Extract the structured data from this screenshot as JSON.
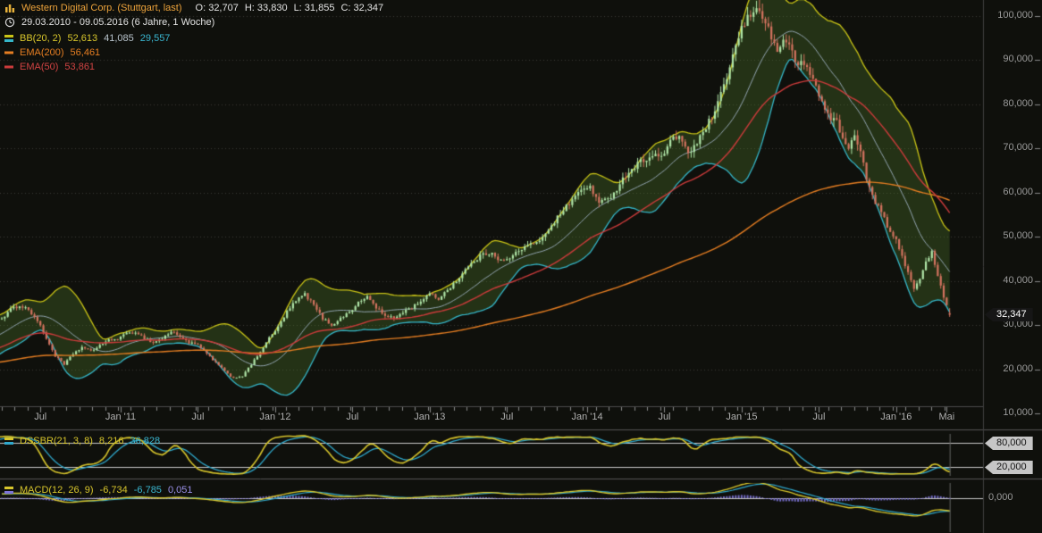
{
  "header": {
    "title": "Western Digital Corp. (Stuttgart, last)",
    "ohlc": {
      "o": "O: 32,707",
      "h": "H: 33,830",
      "l": "L: 31,855",
      "c": "C: 32,347"
    },
    "date_range": "29.03.2010 - 09.05.2016 (6 Jahre, 1 Woche)"
  },
  "legend": {
    "bb_label": "BB(20, 2)",
    "bb_upper": "52,613",
    "bb_middle": "41,085",
    "bb_lower": "29,557",
    "ema200_label": "EMA(200)",
    "ema200_value": "56,461",
    "ema50_label": "EMA(50)",
    "ema50_value": "53,861"
  },
  "dssbr_panel": {
    "label": "DSSBR(21, 3, 8)",
    "value_main": "8,216",
    "value_signal": "36,828",
    "upper_badge": "80,000",
    "lower_badge": "20,000"
  },
  "macd_panel": {
    "label": "MACD(12, 26, 9)",
    "value_macd": "-6,734",
    "value_signal": "-6,785",
    "value_hist": "0,051",
    "zero_label": "0,000"
  },
  "price_badge": "32,347",
  "y_axis_labels": [
    "100,000",
    "90,000",
    "80,000",
    "70,000",
    "60,000",
    "50,000",
    "40,000",
    "30,000",
    "20,000",
    "10,000"
  ],
  "chart_data": {
    "type": "candlestick",
    "instrument": "Western Digital Corp. (Stuttgart, last)",
    "timeframe": "1 Woche",
    "date_start": "29.03.2010",
    "date_end": "09.05.2016",
    "n_weeks": 320,
    "ylim": [
      10,
      105
    ],
    "y_ticks": [
      100,
      90,
      80,
      70,
      60,
      50,
      40,
      30,
      20,
      10
    ],
    "x_ticks": [
      {
        "label": "Jul",
        "week": 13
      },
      {
        "label": "Jan '11",
        "week": 40
      },
      {
        "label": "Jul",
        "week": 66
      },
      {
        "label": "Jan '12",
        "week": 92
      },
      {
        "label": "Jul",
        "week": 118
      },
      {
        "label": "Jan '13",
        "week": 144
      },
      {
        "label": "Jul",
        "week": 170
      },
      {
        "label": "Jan '14",
        "week": 197
      },
      {
        "label": "Jul",
        "week": 223
      },
      {
        "label": "Jan '15",
        "week": 249
      },
      {
        "label": "Jul",
        "week": 275
      },
      {
        "label": "Jan '16",
        "week": 301
      },
      {
        "label": "Mai",
        "week": 318
      }
    ],
    "close_keypoints": [
      [
        0,
        31.5
      ],
      [
        3,
        33.5
      ],
      [
        6,
        34.5
      ],
      [
        9,
        33.5
      ],
      [
        12,
        31
      ],
      [
        15,
        27
      ],
      [
        18,
        23
      ],
      [
        21,
        21
      ],
      [
        24,
        23.5
      ],
      [
        27,
        25
      ],
      [
        30,
        24
      ],
      [
        33,
        25.5
      ],
      [
        36,
        26.5
      ],
      [
        39,
        27
      ],
      [
        42,
        28
      ],
      [
        45,
        28.5
      ],
      [
        48,
        27
      ],
      [
        51,
        26
      ],
      [
        54,
        27
      ],
      [
        57,
        28.5
      ],
      [
        60,
        27.5
      ],
      [
        63,
        26
      ],
      [
        66,
        25.5
      ],
      [
        69,
        23.5
      ],
      [
        72,
        21.5
      ],
      [
        75,
        19.5
      ],
      [
        78,
        18
      ],
      [
        81,
        18.5
      ],
      [
        84,
        21
      ],
      [
        87,
        24
      ],
      [
        90,
        27
      ],
      [
        93,
        29.5
      ],
      [
        96,
        33
      ],
      [
        99,
        35.5
      ],
      [
        102,
        37
      ],
      [
        105,
        34.5
      ],
      [
        108,
        31.5
      ],
      [
        111,
        30
      ],
      [
        114,
        31.5
      ],
      [
        117,
        33
      ],
      [
        120,
        35
      ],
      [
        123,
        36.5
      ],
      [
        126,
        34
      ],
      [
        129,
        32
      ],
      [
        132,
        31.5
      ],
      [
        135,
        33
      ],
      [
        138,
        34
      ],
      [
        141,
        35.5
      ],
      [
        144,
        37
      ],
      [
        147,
        36
      ],
      [
        150,
        38
      ],
      [
        153,
        40
      ],
      [
        156,
        42.5
      ],
      [
        159,
        44.5
      ],
      [
        162,
        46
      ],
      [
        165,
        46.5
      ],
      [
        168,
        44.5
      ],
      [
        171,
        45
      ],
      [
        174,
        47
      ],
      [
        177,
        48
      ],
      [
        180,
        48.5
      ],
      [
        183,
        51
      ],
      [
        186,
        53.5
      ],
      [
        189,
        56
      ],
      [
        192,
        58.5
      ],
      [
        195,
        60.5
      ],
      [
        198,
        61.5
      ],
      [
        201,
        57.5
      ],
      [
        204,
        58.5
      ],
      [
        207,
        61
      ],
      [
        210,
        64
      ],
      [
        213,
        66
      ],
      [
        216,
        67.5
      ],
      [
        219,
        68.5
      ],
      [
        222,
        68
      ],
      [
        225,
        71.5
      ],
      [
        228,
        73
      ],
      [
        231,
        69
      ],
      [
        234,
        71
      ],
      [
        237,
        75
      ],
      [
        240,
        78
      ],
      [
        243,
        84
      ],
      [
        246,
        91
      ],
      [
        249,
        97
      ],
      [
        252,
        100.5
      ],
      [
        255,
        101.5
      ],
      [
        257,
        99
      ],
      [
        259,
        95
      ],
      [
        261,
        92
      ],
      [
        263,
        95
      ],
      [
        265,
        93
      ],
      [
        267,
        90
      ],
      [
        269,
        89
      ],
      [
        271,
        88
      ],
      [
        273,
        86
      ],
      [
        275,
        82
      ],
      [
        277,
        79
      ],
      [
        279,
        77
      ],
      [
        281,
        76
      ],
      [
        283,
        72
      ],
      [
        285,
        70
      ],
      [
        287,
        73
      ],
      [
        289,
        70
      ],
      [
        291,
        63
      ],
      [
        293,
        59
      ],
      [
        295,
        57
      ],
      [
        297,
        54
      ],
      [
        299,
        51
      ],
      [
        301,
        49
      ],
      [
        303,
        45.5
      ],
      [
        305,
        42
      ],
      [
        307,
        38.5
      ],
      [
        309,
        40.5
      ],
      [
        311,
        44
      ],
      [
        313,
        46.5
      ],
      [
        315,
        41.5
      ],
      [
        317,
        36.5
      ],
      [
        318,
        34.5
      ],
      [
        319,
        32.347
      ]
    ],
    "last_candle": {
      "open": 32.707,
      "high": 33.83,
      "low": 31.855,
      "close": 32.347
    },
    "bollinger": {
      "period": 20,
      "stddev": 2,
      "upper": 52.613,
      "middle": 41.085,
      "lower": 29.557
    },
    "ema200": 56.461,
    "ema50": 53.861,
    "dssbr": {
      "params": [
        21,
        3,
        8
      ],
      "main": 8.216,
      "signal": 36.828,
      "levels": [
        80,
        20
      ]
    },
    "macd": {
      "params": [
        12,
        26,
        9
      ],
      "macd": -6.734,
      "signal": -6.785,
      "hist": 0.051
    },
    "colors": {
      "up_candle": "#b0e6a8",
      "down_candle": "#d4735f",
      "bb_upper": "#c9c417",
      "bb_lower": "#35b6c9",
      "bb_middle": "#93a5b1",
      "bb_fill": "rgba(80,125,45,0.32)",
      "ema200": "#e67e22",
      "ema50": "#cc3b3b",
      "osc_main": "#d8c62c",
      "osc_signal": "#2fa8cc",
      "macd_hist": "#7d74d8",
      "grid": "#3a3a36",
      "axis_text": "#9a9a9a",
      "level_line": "#c9c9c9"
    }
  }
}
